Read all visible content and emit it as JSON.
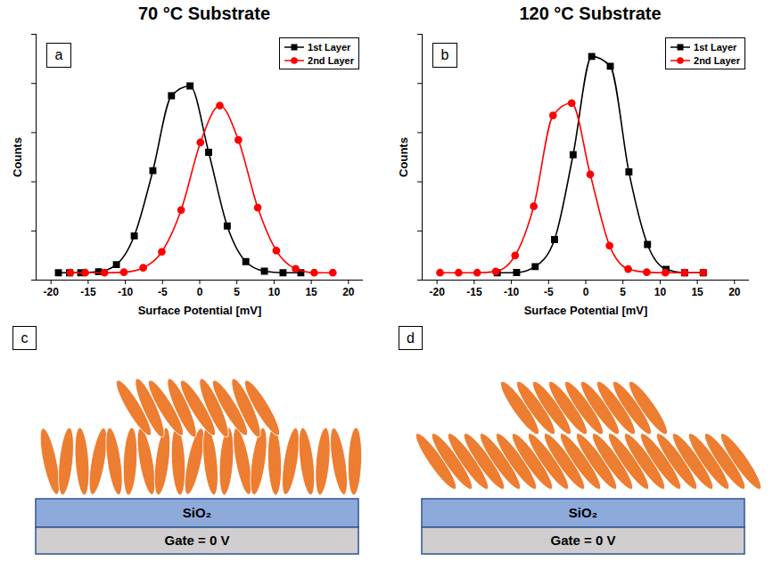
{
  "chart_data": [
    {
      "type": "line",
      "panel_label": "a",
      "title": "70 °C Substrate",
      "x_label": "Surface Potential [mV]",
      "y_label": "Counts",
      "xlim": [
        -22,
        22
      ],
      "xticks": [
        -20,
        -15,
        -10,
        -5,
        0,
        5,
        10,
        15,
        20
      ],
      "ylim": [
        0,
        100
      ],
      "yticks": [
        0,
        20,
        40,
        60,
        80,
        100
      ],
      "tick_labels": "x",
      "legend": "top-right",
      "series": [
        {
          "name": "1st Layer",
          "color": "#000000",
          "marker": "square",
          "x": [
            -19,
            -17.5,
            -16,
            -13.6,
            -11.2,
            -8.8,
            -6.3,
            -3.8,
            -1.3,
            1.2,
            3.7,
            6.2,
            8.7,
            11.2,
            13.6
          ],
          "values": [
            3,
            3,
            3,
            3.4,
            6.3,
            18,
            44.5,
            75,
            79,
            52,
            22,
            7.5,
            3.6,
            3,
            3
          ]
        },
        {
          "name": "2nd Layer",
          "color": "#ff0000",
          "marker": "circle",
          "x": [
            -17.4,
            -15.4,
            -12.8,
            -10.2,
            -7.6,
            -5.1,
            -2.5,
            0.1,
            2.7,
            5.2,
            7.8,
            10.3,
            12.9,
            15.4,
            17.9
          ],
          "values": [
            3,
            3,
            3,
            3.2,
            5,
            11.5,
            28.5,
            56,
            71,
            57,
            29.5,
            12,
            4.6,
            3,
            3
          ]
        }
      ]
    },
    {
      "type": "line",
      "panel_label": "b",
      "title": "120 °C Substrate",
      "x_label": "Surface Potential [mV]",
      "y_label": "Counts",
      "xlim": [
        -22,
        22
      ],
      "xticks": [
        -20,
        -15,
        -10,
        -5,
        0,
        5,
        10,
        15,
        20
      ],
      "ylim": [
        0,
        100
      ],
      "yticks": [
        0,
        20,
        40,
        60,
        80,
        100
      ],
      "tick_labels": "x",
      "legend": "top-right",
      "series": [
        {
          "name": "1st Layer",
          "color": "#000000",
          "marker": "square",
          "x": [
            -11.9,
            -9.3,
            -6.8,
            -4.2,
            -1.7,
            0.8,
            3.3,
            5.8,
            8.3,
            10.8,
            13.3,
            15.8
          ],
          "values": [
            3,
            3.1,
            5.5,
            16.5,
            51,
            91,
            87,
            44,
            14.5,
            4.4,
            3,
            3
          ]
        },
        {
          "name": "2nd Layer",
          "color": "#ff0000",
          "marker": "circle",
          "x": [
            -19.6,
            -17.1,
            -14.6,
            -12.1,
            -9.5,
            -7.0,
            -4.4,
            -1.9,
            0.6,
            3.2,
            5.7,
            8.2,
            10.7,
            13.3,
            15.8
          ],
          "values": [
            3,
            3,
            3,
            3.5,
            10,
            30,
            67,
            72,
            43,
            14,
            4.5,
            3.2,
            3,
            3,
            3
          ]
        }
      ]
    }
  ],
  "diagrams": [
    {
      "panel_label": "c",
      "substrate": "SiO₂",
      "gate": "Gate = 0 V"
    },
    {
      "panel_label": "d",
      "substrate": "SiO₂",
      "gate": "Gate = 0 V"
    }
  ]
}
